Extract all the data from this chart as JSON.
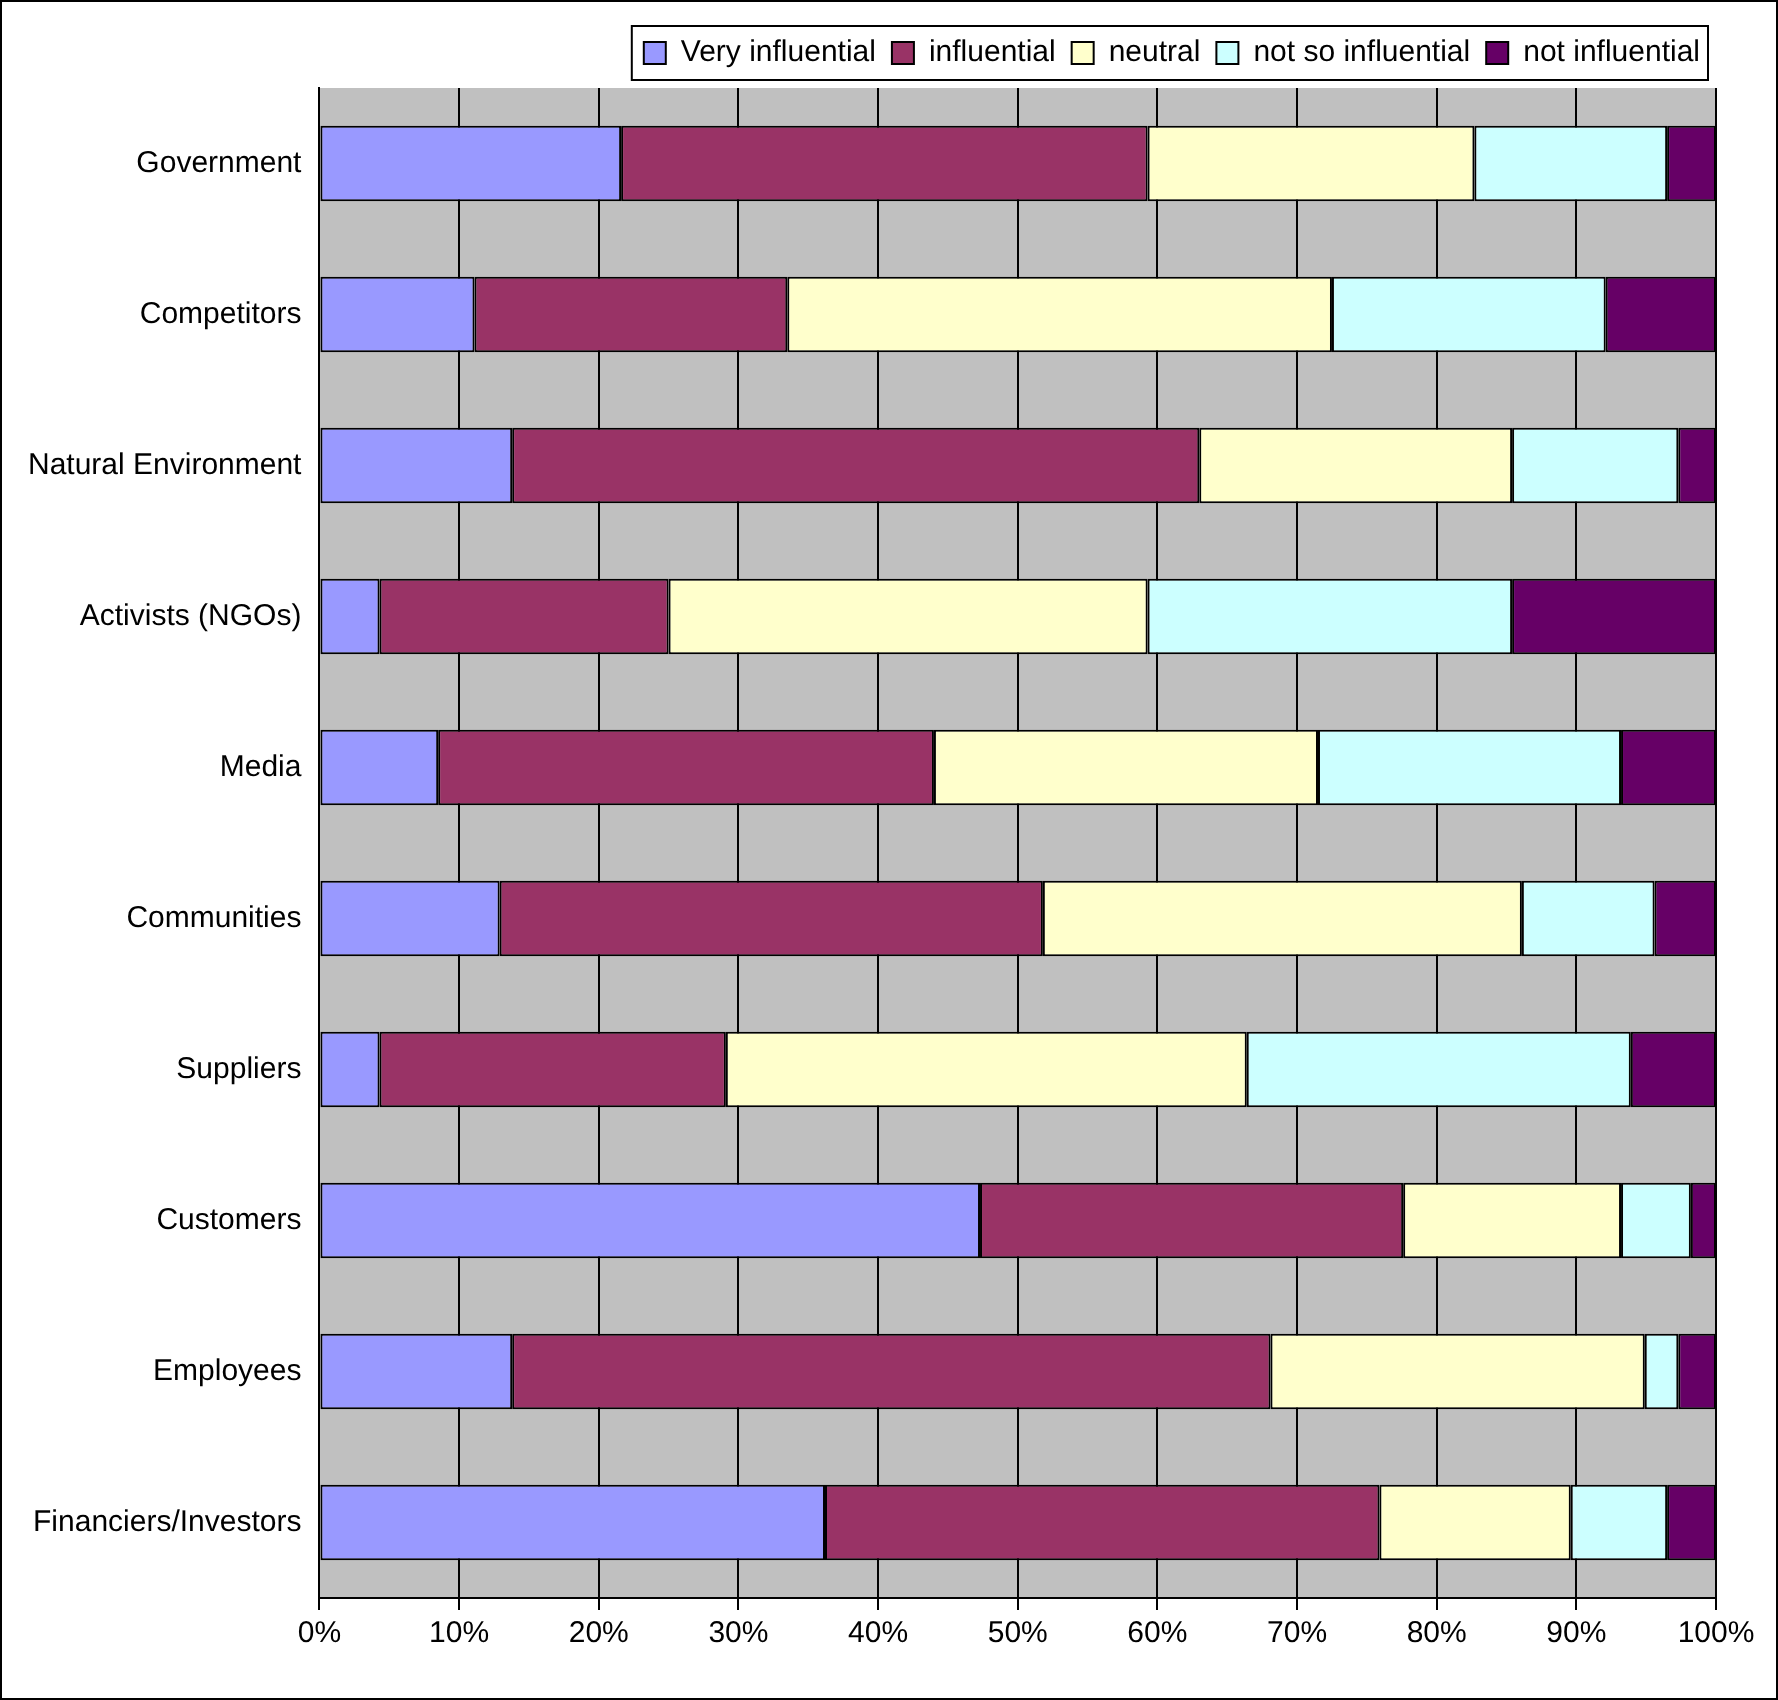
{
  "chart_data": {
    "type": "bar",
    "orientation": "horizontal",
    "stacked": true,
    "categories": [
      "Government",
      "Competitors",
      "Natural Environment",
      "Activists (NGOs)",
      "Media",
      "Communities",
      "Suppliers",
      "Customers",
      "Employees",
      "Financiers/Investors"
    ],
    "series": [
      {
        "name": "Very influential",
        "color": "#9999ff",
        "values": [
          21.6,
          11.1,
          13.8,
          4.3,
          8.5,
          12.9,
          4.3,
          47.3,
          13.8,
          36.2
        ]
      },
      {
        "name": "influential",
        "color": "#993366",
        "values": [
          37.7,
          22.4,
          49.2,
          20.7,
          35.5,
          38.9,
          24.8,
          30.3,
          54.3,
          39.7
        ]
      },
      {
        "name": "neutral",
        "color": "#ffffcc",
        "values": [
          23.4,
          39.0,
          22.4,
          34.3,
          27.5,
          34.3,
          37.3,
          15.6,
          26.8,
          13.7
        ]
      },
      {
        "name": "not so influential",
        "color": "#ccffff",
        "values": [
          13.8,
          19.6,
          11.9,
          26.1,
          21.7,
          9.5,
          27.5,
          5.0,
          2.4,
          6.9
        ]
      },
      {
        "name": "not influential",
        "color": "#660066",
        "values": [
          3.5,
          7.9,
          2.7,
          14.6,
          6.8,
          4.4,
          6.1,
          1.8,
          2.7,
          3.5
        ]
      }
    ],
    "xlim": [
      0,
      100
    ],
    "xticks": [
      {
        "value": 0,
        "label": "0%"
      },
      {
        "value": 10,
        "label": "10%"
      },
      {
        "value": 20,
        "label": "20%"
      },
      {
        "value": 30,
        "label": "30%"
      },
      {
        "value": 40,
        "label": "40%"
      },
      {
        "value": 50,
        "label": "50%"
      },
      {
        "value": 60,
        "label": "60%"
      },
      {
        "value": 70,
        "label": "70%"
      },
      {
        "value": 80,
        "label": "80%"
      },
      {
        "value": 90,
        "label": "90%"
      },
      {
        "value": 100,
        "label": "100%"
      }
    ],
    "grid": "x",
    "legend": "top"
  }
}
